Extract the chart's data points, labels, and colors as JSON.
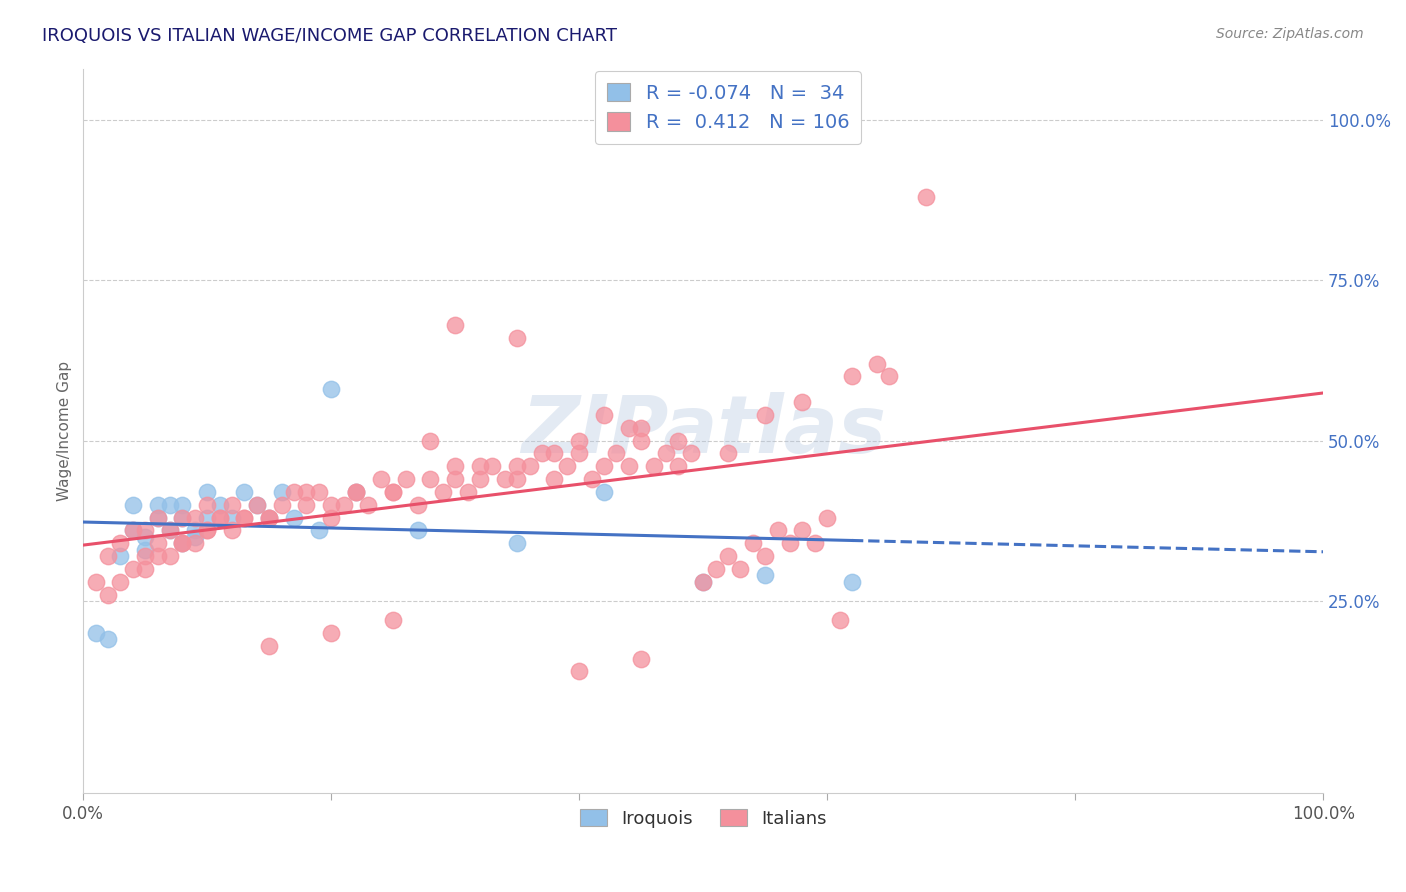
{
  "title": "IROQUOIS VS ITALIAN WAGE/INCOME GAP CORRELATION CHART",
  "source": "Source: ZipAtlas.com",
  "ylabel": "Wage/Income Gap",
  "ytick_vals": [
    0.25,
    0.5,
    0.75,
    1.0
  ],
  "ytick_labels": [
    "25.0%",
    "50.0%",
    "75.0%",
    "100.0%"
  ],
  "xlim": [
    0.0,
    1.0
  ],
  "ylim": [
    -0.05,
    1.08
  ],
  "legend_label1": "Iroquois",
  "legend_label2": "Italians",
  "R1": -0.074,
  "N1": 34,
  "R2": 0.412,
  "N2": 106,
  "color_blue": "#92C0E8",
  "color_pink": "#F4909C",
  "color_blue_line": "#4472C4",
  "color_pink_line": "#E8506A",
  "title_color": "#1a1a6e",
  "source_color": "#888888",
  "ytick_color": "#4472C4",
  "grid_color": "#CCCCCC",
  "iroquois_x": [
    0.01,
    0.02,
    0.03,
    0.04,
    0.04,
    0.05,
    0.05,
    0.06,
    0.06,
    0.07,
    0.07,
    0.08,
    0.08,
    0.08,
    0.09,
    0.09,
    0.1,
    0.1,
    0.11,
    0.12,
    0.13,
    0.14,
    0.15,
    0.16,
    0.17,
    0.19,
    0.22,
    0.27,
    0.35,
    0.42,
    0.5,
    0.55,
    0.62,
    0.2
  ],
  "iroquois_y": [
    0.2,
    0.19,
    0.32,
    0.36,
    0.4,
    0.35,
    0.33,
    0.38,
    0.4,
    0.36,
    0.4,
    0.34,
    0.38,
    0.4,
    0.35,
    0.36,
    0.42,
    0.38,
    0.4,
    0.38,
    0.42,
    0.4,
    0.38,
    0.42,
    0.38,
    0.36,
    0.42,
    0.36,
    0.34,
    0.42,
    0.28,
    0.29,
    0.28,
    0.58
  ],
  "italians_x": [
    0.01,
    0.02,
    0.02,
    0.03,
    0.03,
    0.04,
    0.04,
    0.05,
    0.05,
    0.06,
    0.06,
    0.07,
    0.07,
    0.08,
    0.08,
    0.09,
    0.09,
    0.1,
    0.1,
    0.11,
    0.11,
    0.12,
    0.12,
    0.13,
    0.14,
    0.15,
    0.16,
    0.17,
    0.18,
    0.19,
    0.2,
    0.21,
    0.22,
    0.23,
    0.24,
    0.25,
    0.26,
    0.27,
    0.28,
    0.29,
    0.3,
    0.31,
    0.32,
    0.33,
    0.34,
    0.35,
    0.36,
    0.37,
    0.38,
    0.39,
    0.4,
    0.41,
    0.42,
    0.43,
    0.44,
    0.45,
    0.46,
    0.47,
    0.48,
    0.49,
    0.5,
    0.51,
    0.52,
    0.53,
    0.54,
    0.55,
    0.56,
    0.57,
    0.58,
    0.59,
    0.6,
    0.62,
    0.64,
    0.65,
    0.35,
    0.38,
    0.28,
    0.3,
    0.42,
    0.44,
    0.25,
    0.32,
    0.4,
    0.22,
    0.18,
    0.15,
    0.2,
    0.13,
    0.1,
    0.08,
    0.06,
    0.05,
    0.45,
    0.48,
    0.52,
    0.55,
    0.58,
    0.61,
    0.3,
    0.35,
    0.4,
    0.45,
    0.25,
    0.2,
    0.15,
    0.68
  ],
  "italians_y": [
    0.28,
    0.26,
    0.32,
    0.28,
    0.34,
    0.3,
    0.36,
    0.32,
    0.36,
    0.34,
    0.38,
    0.32,
    0.36,
    0.34,
    0.38,
    0.34,
    0.38,
    0.36,
    0.4,
    0.38,
    0.38,
    0.36,
    0.4,
    0.38,
    0.4,
    0.38,
    0.4,
    0.42,
    0.4,
    0.42,
    0.38,
    0.4,
    0.42,
    0.4,
    0.44,
    0.42,
    0.44,
    0.4,
    0.44,
    0.42,
    0.46,
    0.42,
    0.44,
    0.46,
    0.44,
    0.44,
    0.46,
    0.48,
    0.44,
    0.46,
    0.48,
    0.44,
    0.46,
    0.48,
    0.46,
    0.5,
    0.46,
    0.48,
    0.46,
    0.48,
    0.28,
    0.3,
    0.32,
    0.3,
    0.34,
    0.32,
    0.36,
    0.34,
    0.36,
    0.34,
    0.38,
    0.6,
    0.62,
    0.6,
    0.46,
    0.48,
    0.5,
    0.44,
    0.54,
    0.52,
    0.42,
    0.46,
    0.5,
    0.42,
    0.42,
    0.38,
    0.4,
    0.38,
    0.36,
    0.34,
    0.32,
    0.3,
    0.52,
    0.5,
    0.48,
    0.54,
    0.56,
    0.22,
    0.68,
    0.66,
    0.14,
    0.16,
    0.22,
    0.2,
    0.18,
    0.88
  ]
}
